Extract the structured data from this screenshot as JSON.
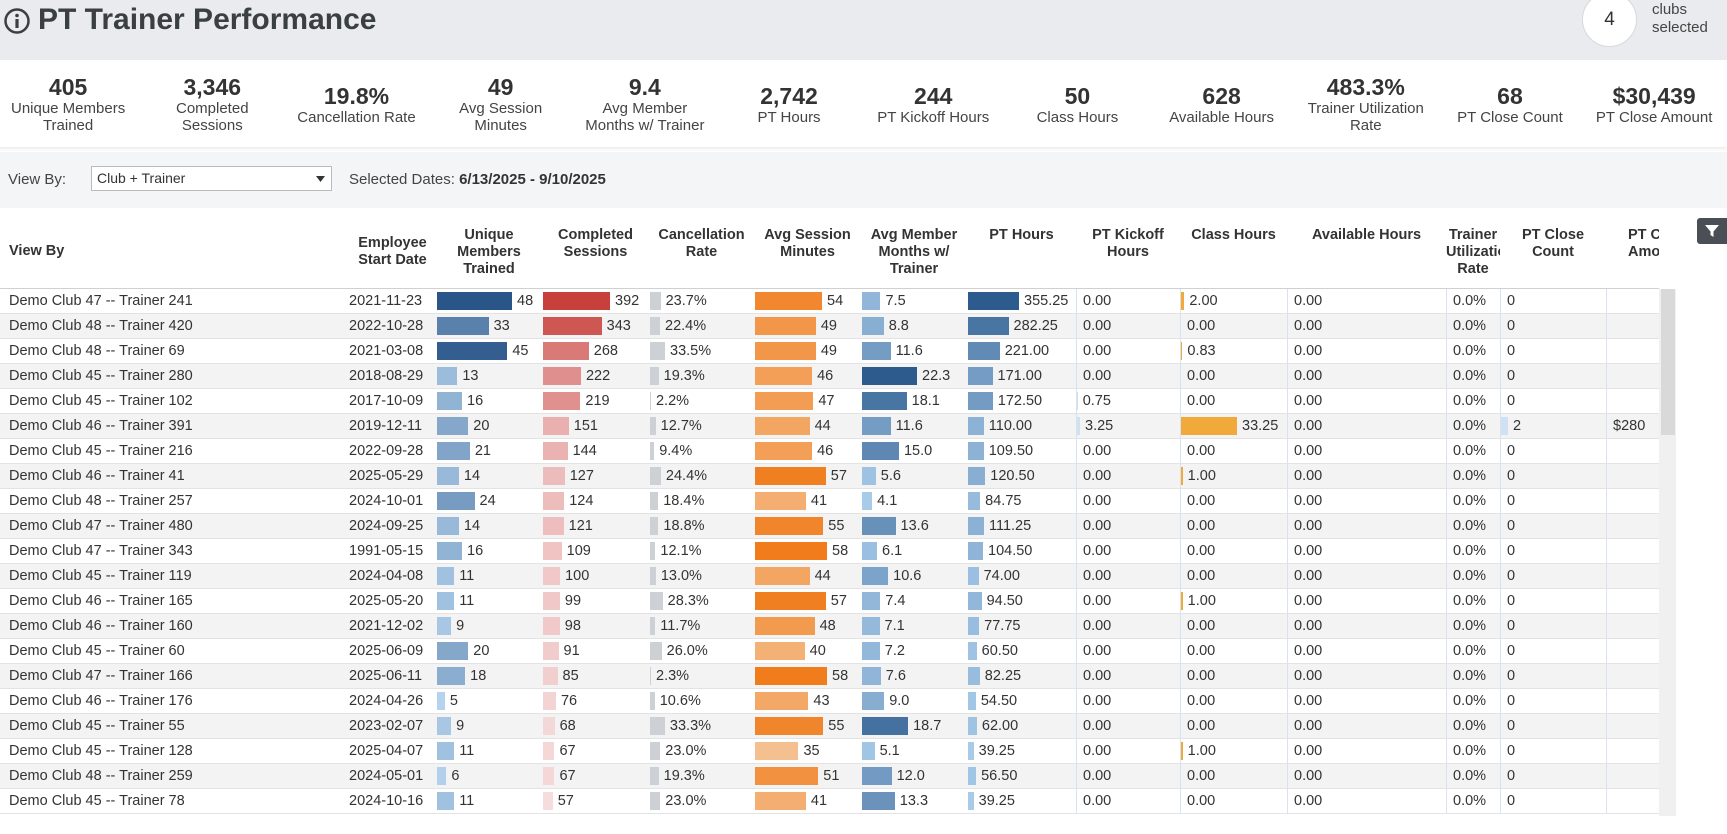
{
  "header": {
    "title": "PT Trainer Performance",
    "clubs_count": "4",
    "clubs_label": "clubs selected"
  },
  "kpis": [
    {
      "value": "405",
      "label": "Unique Members Trained"
    },
    {
      "value": "3,346",
      "label": "Completed Sessions"
    },
    {
      "value": "19.8%",
      "label": "Cancellation Rate"
    },
    {
      "value": "49",
      "label": "Avg Session Minutes"
    },
    {
      "value": "9.4",
      "label": "Avg Member Months w/ Trainer"
    },
    {
      "value": "2,742",
      "label": "PT Hours"
    },
    {
      "value": "244",
      "label": "PT Kickoff Hours"
    },
    {
      "value": "50",
      "label": "Class Hours"
    },
    {
      "value": "628",
      "label": "Available Hours"
    },
    {
      "value": "483.3%",
      "label": "Trainer Utilization Rate"
    },
    {
      "value": "68",
      "label": "PT Close Count"
    },
    {
      "value": "$30,439",
      "label": "PT Close Amount"
    }
  ],
  "controls": {
    "view_by_label": "View By:",
    "view_by_value": "Club + Trainer",
    "dates_label": "Selected Dates:",
    "dates_value": "6/13/2025 - 9/10/2025"
  },
  "table": {
    "columns": [
      "View By",
      "Employee Start Date",
      "Unique Members Trained",
      "Completed Sessions",
      "Cancellation Rate",
      "Avg Session Minutes",
      "Avg Member Months w/ Trainer",
      "PT Hours",
      "PT Kickoff Hours",
      "Class Hours",
      "Available Hours",
      "Trainer Utilization Rate",
      "PT Close Count",
      "PT Close Amount"
    ],
    "rows": [
      [
        "Demo Club 47 -- Trainer 241",
        "2021-11-23",
        "48",
        "392",
        "23.7%",
        "54",
        "7.5",
        "355.25",
        "0.00",
        "2.00",
        "0.00",
        "0.0%",
        "0",
        null
      ],
      [
        "Demo Club 48 -- Trainer 420",
        "2022-10-28",
        "33",
        "343",
        "22.4%",
        "49",
        "8.8",
        "282.25",
        "0.00",
        "0.00",
        "0.00",
        "0.0%",
        "0",
        null
      ],
      [
        "Demo Club 48 -- Trainer 69",
        "2021-03-08",
        "45",
        "268",
        "33.5%",
        "49",
        "11.6",
        "221.00",
        "0.00",
        "0.83",
        "0.00",
        "0.0%",
        "0",
        null
      ],
      [
        "Demo Club 45 -- Trainer 280",
        "2018-08-29",
        "13",
        "222",
        "19.3%",
        "46",
        "22.3",
        "171.00",
        "0.00",
        "0.00",
        "0.00",
        "0.0%",
        "0",
        null
      ],
      [
        "Demo Club 45 -- Trainer 102",
        "2017-10-09",
        "16",
        "219",
        "2.2%",
        "47",
        "18.1",
        "172.50",
        "0.75",
        "0.00",
        "0.00",
        "0.0%",
        "0",
        null
      ],
      [
        "Demo Club 46 -- Trainer 391",
        "2019-12-11",
        "20",
        "151",
        "12.7%",
        "44",
        "11.6",
        "110.00",
        "3.25",
        "33.25",
        "0.00",
        "0.0%",
        "2",
        "$280"
      ],
      [
        "Demo Club 45 -- Trainer 216",
        "2022-09-28",
        "21",
        "144",
        "9.4%",
        "46",
        "15.0",
        "109.50",
        "0.00",
        "0.00",
        "0.00",
        "0.0%",
        "0",
        null
      ],
      [
        "Demo Club 46 -- Trainer 41",
        "2025-05-29",
        "14",
        "127",
        "24.4%",
        "57",
        "5.6",
        "120.50",
        "0.00",
        "1.00",
        "0.00",
        "0.0%",
        "0",
        null
      ],
      [
        "Demo Club 48 -- Trainer 257",
        "2024-10-01",
        "24",
        "124",
        "18.4%",
        "41",
        "4.1",
        "84.75",
        "0.00",
        "0.00",
        "0.00",
        "0.0%",
        "0",
        null
      ],
      [
        "Demo Club 47 -- Trainer 480",
        "2024-09-25",
        "14",
        "121",
        "18.8%",
        "55",
        "13.6",
        "111.25",
        "0.00",
        "0.00",
        "0.00",
        "0.0%",
        "0",
        null
      ],
      [
        "Demo Club 47 -- Trainer 343",
        "1991-05-15",
        "16",
        "109",
        "12.1%",
        "58",
        "6.1",
        "104.50",
        "0.00",
        "0.00",
        "0.00",
        "0.0%",
        "0",
        null
      ],
      [
        "Demo Club 45 -- Trainer 119",
        "2024-04-08",
        "11",
        "100",
        "13.0%",
        "44",
        "10.6",
        "74.00",
        "0.00",
        "0.00",
        "0.00",
        "0.0%",
        "0",
        null
      ],
      [
        "Demo Club 46 -- Trainer 165",
        "2025-05-20",
        "11",
        "99",
        "28.3%",
        "57",
        "7.4",
        "94.50",
        "0.00",
        "1.00",
        "0.00",
        "0.0%",
        "0",
        null
      ],
      [
        "Demo Club 46 -- Trainer 160",
        "2021-12-02",
        "9",
        "98",
        "11.7%",
        "48",
        "7.1",
        "77.75",
        "0.00",
        "0.00",
        "0.00",
        "0.0%",
        "0",
        null
      ],
      [
        "Demo Club 45 -- Trainer 60",
        "2025-06-09",
        "20",
        "91",
        "26.0%",
        "40",
        "7.2",
        "60.50",
        "0.00",
        "0.00",
        "0.00",
        "0.0%",
        "0",
        null
      ],
      [
        "Demo Club 47 -- Trainer 166",
        "2025-06-11",
        "18",
        "85",
        "2.3%",
        "58",
        "7.6",
        "82.25",
        "0.00",
        "0.00",
        "0.00",
        "0.0%",
        "0",
        null
      ],
      [
        "Demo Club 46 -- Trainer 176",
        "2024-04-26",
        "5",
        "76",
        "10.6%",
        "43",
        "9.0",
        "54.50",
        "0.00",
        "0.00",
        "0.00",
        "0.0%",
        "0",
        null
      ],
      [
        "Demo Club 45 -- Trainer 55",
        "2023-02-07",
        "9",
        "68",
        "33.3%",
        "55",
        "18.7",
        "62.00",
        "0.00",
        "0.00",
        "0.00",
        "0.0%",
        "0",
        null
      ],
      [
        "Demo Club 45 -- Trainer 128",
        "2025-04-07",
        "11",
        "67",
        "23.0%",
        "35",
        "5.1",
        "39.25",
        "0.00",
        "1.00",
        "0.00",
        "0.0%",
        "0",
        null
      ],
      [
        "Demo Club 48 -- Trainer 259",
        "2024-05-01",
        "6",
        "67",
        "19.3%",
        "51",
        "12.0",
        "56.50",
        "0.00",
        "0.00",
        "0.00",
        "0.0%",
        "0",
        null
      ],
      [
        "Demo Club 45 -- Trainer 78",
        "2024-10-16",
        "11",
        "57",
        "23.0%",
        "41",
        "13.3",
        "39.25",
        "0.00",
        "0.00",
        "0.00",
        "0.0%",
        "0",
        null
      ]
    ]
  }
}
